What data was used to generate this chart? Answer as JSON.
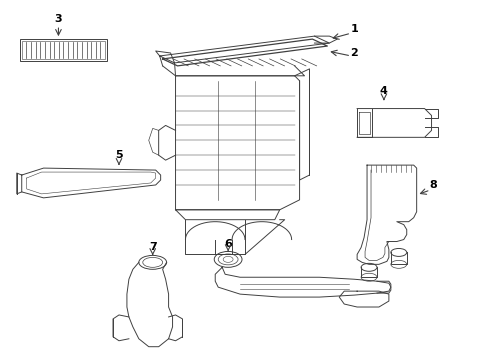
{
  "background_color": "#ffffff",
  "line_color": "#404040",
  "label_color": "#000000",
  "fig_width": 4.89,
  "fig_height": 3.6,
  "dpi": 100,
  "lw": 0.7
}
